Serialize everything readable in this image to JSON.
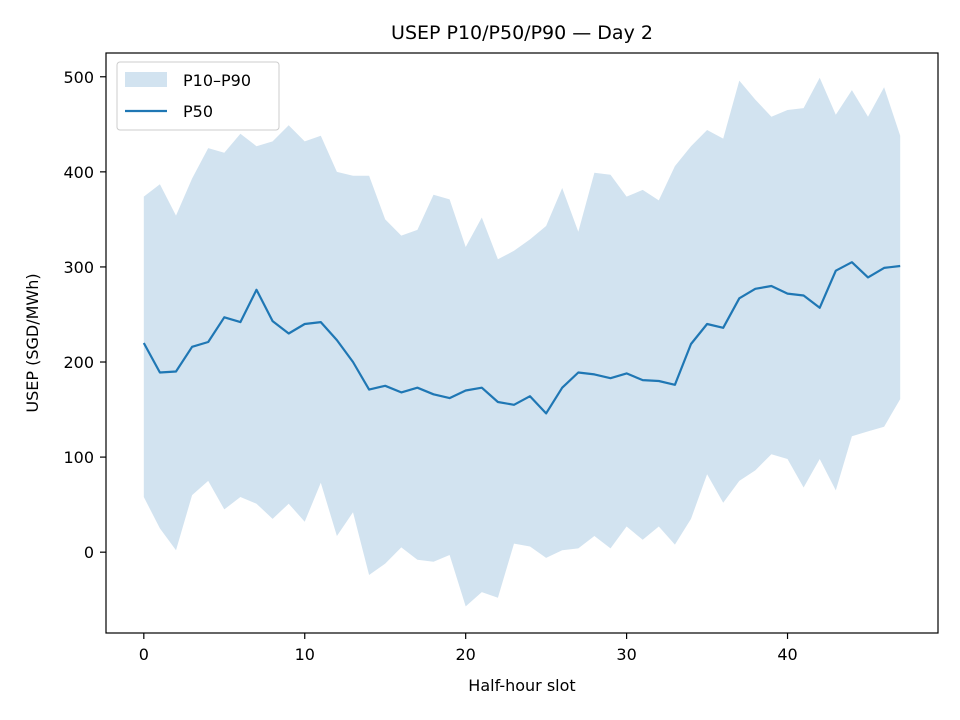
{
  "chart_data": {
    "type": "line",
    "title": "USEP P10/P50/P90 — Day 2",
    "xlabel": "Half-hour slot",
    "ylabel": "USEP (SGD/MWh)",
    "xlim": [
      -2.35,
      49.35
    ],
    "ylim": [
      -85,
      525
    ],
    "xticks": [
      0,
      10,
      20,
      30,
      40
    ],
    "yticks": [
      0,
      100,
      200,
      300,
      400,
      500
    ],
    "grid": false,
    "legend_position": "top-left",
    "x": [
      0,
      1,
      2,
      3,
      4,
      5,
      6,
      7,
      8,
      9,
      10,
      11,
      12,
      13,
      14,
      15,
      16,
      17,
      18,
      19,
      20,
      21,
      22,
      23,
      24,
      25,
      26,
      27,
      28,
      29,
      30,
      31,
      32,
      33,
      34,
      35,
      36,
      37,
      38,
      39,
      40,
      41,
      42,
      43,
      44,
      45,
      46,
      47
    ],
    "band": {
      "name": "P10–P90",
      "color": "#d2e3f0",
      "lower": [
        58,
        25,
        2,
        60,
        75,
        45,
        58,
        51,
        35,
        51,
        32,
        73,
        17,
        42,
        -24,
        -12,
        5,
        -8,
        -10,
        -3,
        -57,
        -42,
        -48,
        9,
        6,
        -6,
        2,
        4,
        17,
        4,
        27,
        13,
        27,
        8,
        35,
        82,
        52,
        75,
        86,
        103,
        98,
        68,
        98,
        65,
        122,
        127,
        132,
        161
      ],
      "upper": [
        374,
        387,
        354,
        393,
        425,
        420,
        440,
        427,
        432,
        449,
        432,
        438,
        400,
        396,
        396,
        350,
        333,
        339,
        376,
        371,
        321,
        352,
        308,
        317,
        329,
        343,
        383,
        337,
        399,
        397,
        374,
        381,
        370,
        406,
        427,
        444,
        435,
        496,
        476,
        458,
        465,
        467,
        499,
        460,
        486,
        458,
        489,
        438
      ]
    },
    "series": [
      {
        "name": "P50",
        "color": "#1f77b4",
        "values": [
          220,
          189,
          190,
          216,
          221,
          247,
          242,
          276,
          243,
          230,
          240,
          242,
          223,
          200,
          171,
          175,
          168,
          173,
          166,
          162,
          170,
          173,
          158,
          155,
          164,
          146,
          173,
          189,
          187,
          183,
          188,
          181,
          180,
          176,
          219,
          240,
          236,
          267,
          277,
          280,
          272,
          270,
          257,
          296,
          305,
          289,
          299,
          301
        ]
      }
    ]
  }
}
